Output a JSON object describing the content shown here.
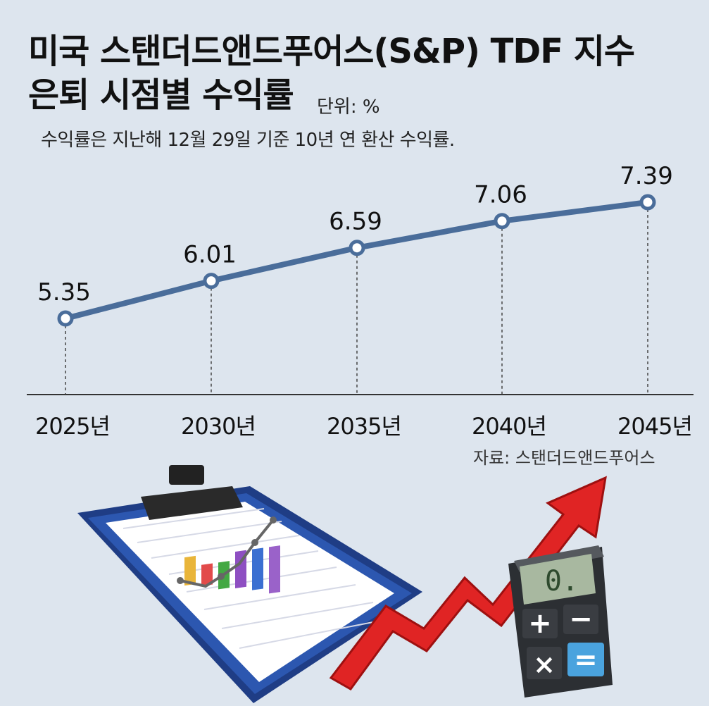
{
  "title": {
    "line1": "미국 스탠더드앤드푸어스(S&P) TDF 지수",
    "line2": "은퇴 시점별 수익률"
  },
  "unit": "단위: %",
  "subtitle": "수익률은 지난해 12월 29일 기준 10년 연 환산 수익률.",
  "source": "자료: 스탠더드앤드푸어스",
  "colors": {
    "background": "#dde5ee",
    "line": "#4a6d9a",
    "marker_fill": "#ffffff",
    "axis": "#333333"
  },
  "calculator": {
    "display": "0."
  },
  "chart_data": {
    "type": "line",
    "title": "미국 스탠더드앤드푸어스(S&P) TDF 지수 은퇴 시점별 수익률",
    "xlabel": "",
    "ylabel": "",
    "categories": [
      "2025년",
      "2030년",
      "2035년",
      "2040년",
      "2045년"
    ],
    "series": [
      {
        "values": [
          5.35,
          6.01,
          6.59,
          7.06,
          7.39
        ]
      }
    ],
    "value_labels": [
      "5.35",
      "6.01",
      "6.59",
      "7.06",
      "7.39"
    ],
    "grid": false,
    "legend": "none"
  }
}
